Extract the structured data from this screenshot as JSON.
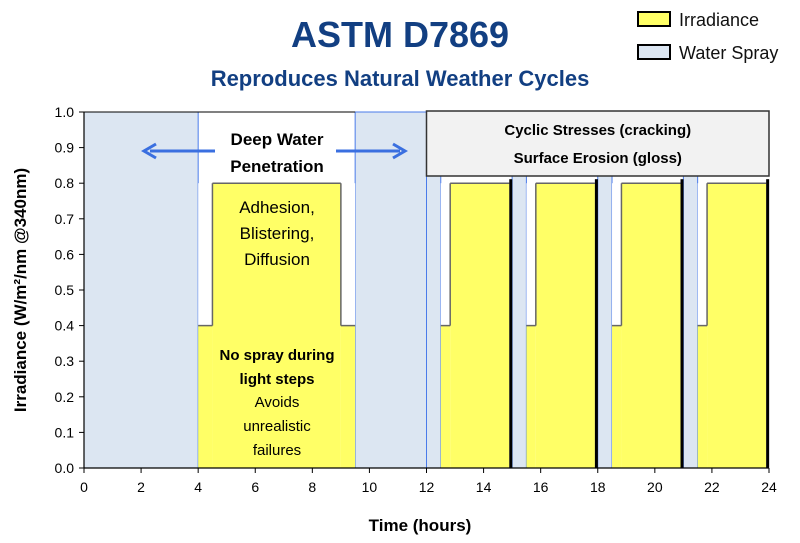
{
  "chart_data": {
    "type": "area",
    "title": "ASTM D7869",
    "subtitle": "Reproduces Natural Weather Cycles",
    "xlabel": "Time (hours)",
    "ylabel": "Irradiance (W/m²/nm @340nm)",
    "xlim": [
      0,
      24
    ],
    "ylim": [
      0,
      1.0
    ],
    "xticks": [
      "0",
      "2",
      "4",
      "6",
      "8",
      "10",
      "12",
      "14",
      "16",
      "18",
      "20",
      "22",
      "24"
    ],
    "yticks": [
      "0.0",
      "0.1",
      "0.2",
      "0.3",
      "0.4",
      "0.5",
      "0.6",
      "0.7",
      "0.8",
      "0.9",
      "1.0"
    ],
    "grid": false,
    "legend_position": "top-right",
    "legend": [
      {
        "name": "Irradiance",
        "color": "#ffff66"
      },
      {
        "name": "Water Spray",
        "color": "#dce6f2"
      }
    ],
    "water_spray_intervals": [
      [
        0,
        4
      ],
      [
        9.5,
        12
      ],
      [
        12,
        12.5
      ],
      [
        15,
        15.5
      ],
      [
        18,
        18.5
      ],
      [
        21,
        21.5
      ]
    ],
    "irradiance_steps": [
      {
        "start": 4,
        "end": 4.5,
        "value": 0.4
      },
      {
        "start": 4.5,
        "end": 9,
        "value": 0.8
      },
      {
        "start": 9,
        "end": 9.5,
        "value": 0.4
      },
      {
        "start": 12.5,
        "end": 12.83,
        "value": 0.4
      },
      {
        "start": 12.83,
        "end": 14.9,
        "value": 0.8
      },
      {
        "start": 15.5,
        "end": 15.83,
        "value": 0.4
      },
      {
        "start": 15.83,
        "end": 17.9,
        "value": 0.8
      },
      {
        "start": 18.5,
        "end": 18.83,
        "value": 0.4
      },
      {
        "start": 18.83,
        "end": 20.9,
        "value": 0.8
      },
      {
        "start": 21.5,
        "end": 21.83,
        "value": 0.4
      },
      {
        "start": 21.83,
        "end": 23.9,
        "value": 0.8
      }
    ],
    "dark_intervals": [
      [
        14.9,
        15
      ],
      [
        17.9,
        18
      ],
      [
        20.9,
        21
      ],
      [
        23.9,
        24
      ]
    ],
    "annotations": {
      "deep_water": [
        "Deep Water",
        "Penetration"
      ],
      "adhesion": [
        "Adhesion,",
        "Blistering,",
        "Diffusion"
      ],
      "no_spray": [
        "No spray during",
        "light steps"
      ],
      "avoids": [
        "Avoids",
        "unrealistic",
        "failures"
      ],
      "cyclic": [
        "Cyclic Stresses (cracking)",
        "Surface Erosion (gloss)"
      ]
    },
    "colors": {
      "title": "#123f82",
      "arrow": "#3a6fe0",
      "spray_border": "#4a7bea"
    }
  }
}
